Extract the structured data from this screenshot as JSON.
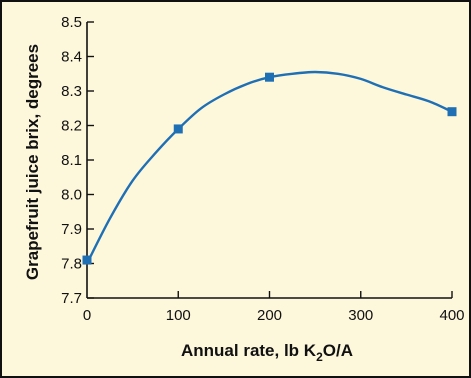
{
  "chart_data": {
    "type": "line",
    "xlabel_parts": {
      "main": "Annual rate, lb K",
      "sub": "2",
      "rest": "O/A"
    },
    "ylabel": "Grapefruit juice brix, degrees",
    "xlim": [
      0,
      400
    ],
    "ylim": [
      7.7,
      8.5
    ],
    "x_ticks": [
      "0",
      "100",
      "200",
      "300",
      "400"
    ],
    "y_ticks": [
      "7.7",
      "7.8",
      "7.9",
      "8.0",
      "8.1",
      "8.2",
      "8.3",
      "8.4",
      "8.5"
    ],
    "grid": false,
    "series": [
      {
        "points": [
          {
            "x": 0,
            "y": 7.81
          },
          {
            "x": 100,
            "y": 8.19
          },
          {
            "x": 200,
            "y": 8.34
          },
          {
            "x": 400,
            "y": 8.24
          }
        ],
        "fit_curve": [
          {
            "x": 0,
            "y": 7.8
          },
          {
            "x": 25,
            "y": 7.93
          },
          {
            "x": 50,
            "y": 8.04
          },
          {
            "x": 75,
            "y": 8.12
          },
          {
            "x": 100,
            "y": 8.19
          },
          {
            "x": 125,
            "y": 8.25
          },
          {
            "x": 150,
            "y": 8.29
          },
          {
            "x": 175,
            "y": 8.32
          },
          {
            "x": 200,
            "y": 8.34
          },
          {
            "x": 225,
            "y": 8.35
          },
          {
            "x": 250,
            "y": 8.355
          },
          {
            "x": 275,
            "y": 8.35
          },
          {
            "x": 300,
            "y": 8.335
          },
          {
            "x": 325,
            "y": 8.31
          },
          {
            "x": 350,
            "y": 8.29
          },
          {
            "x": 375,
            "y": 8.27
          },
          {
            "x": 400,
            "y": 8.24
          }
        ]
      }
    ],
    "colors": {
      "line": "#1f6fb5",
      "marker": "#1f6fb5",
      "axis": "#111111",
      "background": "#fdf8dc"
    }
  }
}
